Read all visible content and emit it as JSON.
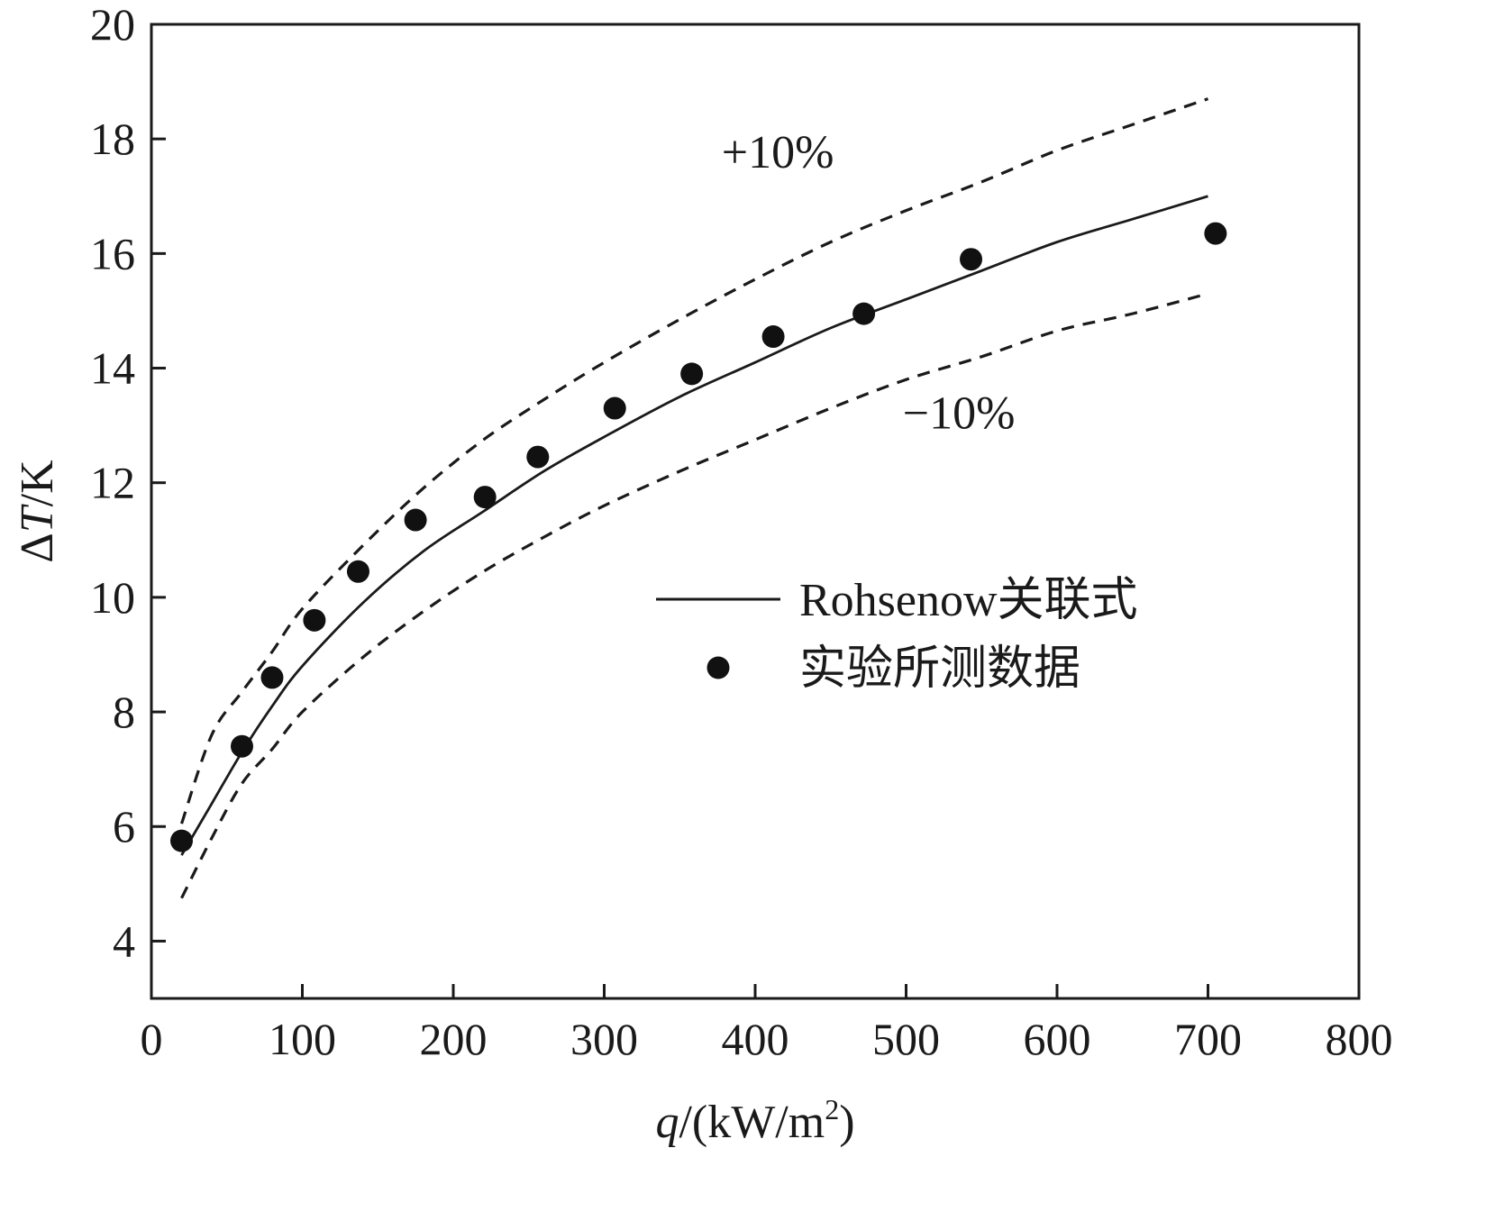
{
  "chart_data": {
    "type": "line",
    "xlabel": {
      "italic": "q",
      "text": "/(kW/m",
      "sup": "2",
      "close": ")"
    },
    "ylabel": {
      "prefix": "Δ",
      "italic": "T",
      "text": "/K"
    },
    "xlim": [
      0,
      800
    ],
    "ylim": [
      3,
      20
    ],
    "xticks": [
      0,
      100,
      200,
      300,
      400,
      500,
      600,
      700,
      800
    ],
    "yticks": [
      4,
      6,
      8,
      10,
      12,
      14,
      16,
      18,
      20
    ],
    "grid": false,
    "legend_position": "center-right",
    "series": [
      {
        "name": "Rohsenow关联式",
        "style": "solid",
        "x": [
          20,
          40,
          60,
          80,
          100,
          140,
          180,
          220,
          260,
          300,
          350,
          400,
          450,
          500,
          550,
          600,
          650,
          700
        ],
        "y": [
          5.5,
          6.4,
          7.3,
          8.1,
          8.8,
          9.9,
          10.8,
          11.5,
          12.2,
          12.8,
          13.5,
          14.1,
          14.7,
          15.2,
          15.7,
          16.2,
          16.6,
          17.0
        ]
      },
      {
        "name": "实验所测数据",
        "style": "marker",
        "x": [
          20,
          60,
          80,
          108,
          137,
          175,
          221,
          256,
          307,
          358,
          412,
          472,
          543,
          705
        ],
        "y": [
          5.75,
          7.4,
          8.6,
          9.6,
          10.45,
          11.35,
          11.75,
          12.45,
          13.3,
          13.9,
          14.55,
          14.95,
          15.9,
          16.35
        ]
      },
      {
        "style": "dashed",
        "x": [
          20,
          40,
          60,
          80,
          100,
          140,
          180,
          220,
          260,
          300,
          350,
          400,
          450,
          500,
          550,
          600,
          650,
          700
        ],
        "y": [
          6.05,
          7.6,
          8.35,
          9.05,
          9.8,
          10.9,
          11.9,
          12.75,
          13.45,
          14.1,
          14.85,
          15.55,
          16.2,
          16.75,
          17.25,
          17.8,
          18.25,
          18.7
        ]
      },
      {
        "style": "dashed",
        "x": [
          20,
          40,
          60,
          80,
          100,
          140,
          180,
          220,
          260,
          300,
          350,
          400,
          450,
          500,
          550,
          600,
          650,
          700
        ],
        "y": [
          4.75,
          5.8,
          6.75,
          7.35,
          8.0,
          8.95,
          9.75,
          10.45,
          11.05,
          11.6,
          12.2,
          12.75,
          13.3,
          13.8,
          14.2,
          14.65,
          14.95,
          15.3
        ]
      }
    ],
    "annotations": [
      {
        "text": "+10%",
        "x": 415,
        "y": 17.5
      },
      {
        "text": "−10%",
        "x": 535,
        "y": 12.95
      }
    ],
    "colors": {
      "line": "#1a1a1a",
      "marker": "#111111",
      "frame": "#1a1a1a"
    }
  }
}
